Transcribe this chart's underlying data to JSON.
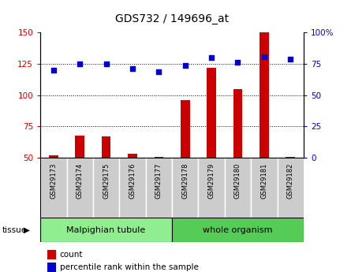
{
  "title": "GDS732 / 149696_at",
  "samples": [
    "GSM29173",
    "GSM29174",
    "GSM29175",
    "GSM29176",
    "GSM29177",
    "GSM29178",
    "GSM29179",
    "GSM29180",
    "GSM29181",
    "GSM29182"
  ],
  "counts": [
    52,
    68,
    67,
    53,
    51,
    96,
    122,
    105,
    150,
    51
  ],
  "percentiles": [
    70,
    75,
    75,
    71,
    69,
    74,
    80,
    76,
    81,
    79
  ],
  "tissue_groups": [
    {
      "label": "Malpighian tubule",
      "start": 0,
      "end": 5,
      "color": "#90EE90"
    },
    {
      "label": "whole organism",
      "start": 5,
      "end": 10,
      "color": "#55CC55"
    }
  ],
  "left_ylim": [
    50,
    150
  ],
  "left_yticks": [
    50,
    75,
    100,
    125,
    150
  ],
  "right_ylim": [
    0,
    100
  ],
  "right_yticks": [
    0,
    25,
    50,
    75,
    100
  ],
  "right_yticklabels": [
    "0",
    "25",
    "50",
    "75",
    "100%"
  ],
  "grid_values": [
    75,
    100,
    125
  ],
  "bar_color": "#CC0000",
  "dot_color": "#0000CC",
  "bar_width": 0.35,
  "legend_count_label": "count",
  "legend_pct_label": "percentile rank within the sample",
  "sample_box_color": "#CCCCCC",
  "tissue_label_color": "#000000",
  "light_green": "#90EE90",
  "dark_green": "#55CC55",
  "figsize": [
    4.45,
    3.45
  ],
  "dpi": 100
}
